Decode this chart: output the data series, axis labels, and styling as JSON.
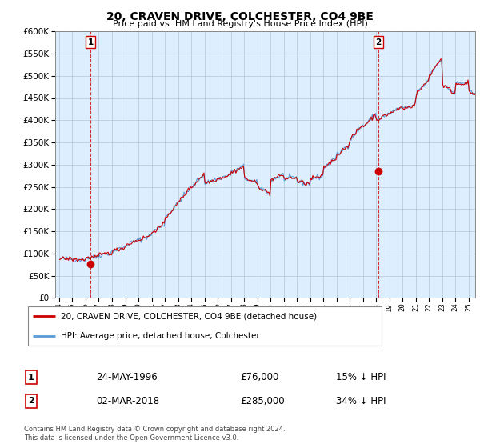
{
  "title": "20, CRAVEN DRIVE, COLCHESTER, CO4 9BE",
  "subtitle": "Price paid vs. HM Land Registry's House Price Index (HPI)",
  "property_color": "#cc0000",
  "hpi_color": "#5b9bd5",
  "hpi_fill_color": "#d6e8f7",
  "background_color": "#ffffff",
  "plot_bg_color": "#ddeeff",
  "grid_color": "#aabbcc",
  "ylim": [
    0,
    600000
  ],
  "yticks": [
    0,
    50000,
    100000,
    150000,
    200000,
    250000,
    300000,
    350000,
    400000,
    450000,
    500000,
    550000,
    600000
  ],
  "legend_entries": [
    "20, CRAVEN DRIVE, COLCHESTER, CO4 9BE (detached house)",
    "HPI: Average price, detached house, Colchester"
  ],
  "annotation1": {
    "label": "1",
    "date": "24-MAY-1996",
    "price": "£76,000",
    "note": "15% ↓ HPI"
  },
  "annotation2": {
    "label": "2",
    "date": "02-MAR-2018",
    "price": "£285,000",
    "note": "34% ↓ HPI"
  },
  "footer": "Contains HM Land Registry data © Crown copyright and database right 2024.\nThis data is licensed under the Open Government Licence v3.0.",
  "sale1_x": 1996.38,
  "sale1_y": 76000,
  "sale2_x": 2018.17,
  "sale2_y": 285000,
  "xlim_left": 1993.7,
  "xlim_right": 2025.5
}
